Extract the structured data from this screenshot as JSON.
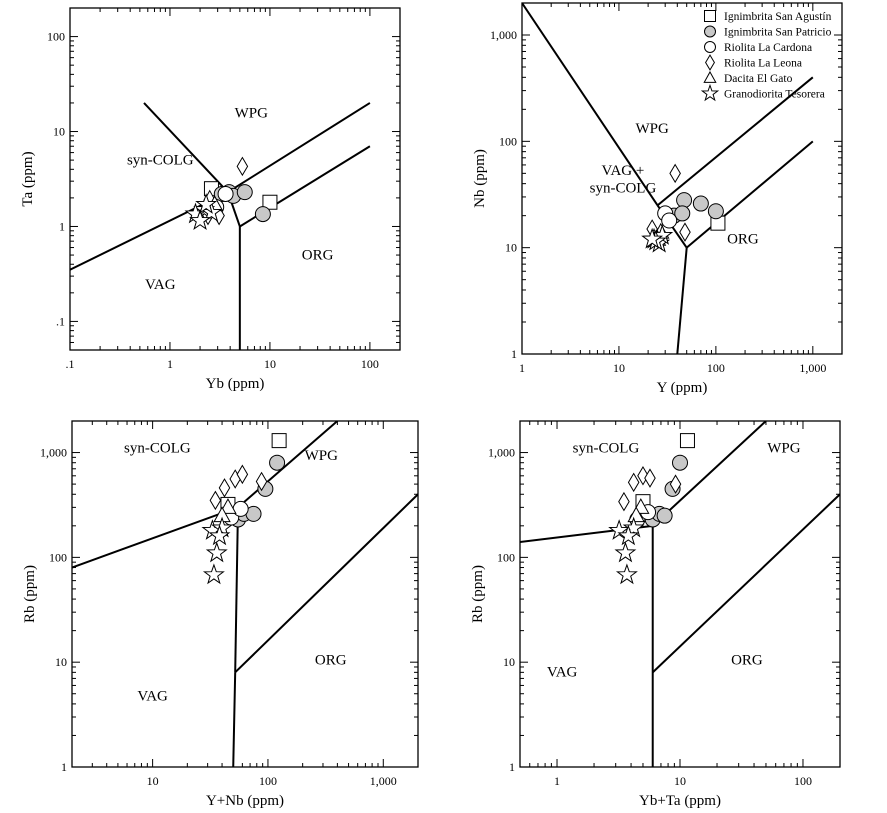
{
  "colors": {
    "ink": "#000000",
    "fill_open": "#ffffff",
    "fill_gray": "#c8c8c8"
  },
  "legend": [
    {
      "label": "Ignimbrita San Agustín",
      "symbol": "square",
      "fill": "#ffffff"
    },
    {
      "label": "Ignimbrita San Patricio",
      "symbol": "circle",
      "fill": "#c8c8c8"
    },
    {
      "label": "Riolita La Cardona",
      "symbol": "circle",
      "fill": "#ffffff"
    },
    {
      "label": "Riolita La Leona",
      "symbol": "diamond",
      "fill": "#ffffff"
    },
    {
      "label": "Dacita El Gato",
      "symbol": "triangle",
      "fill": "#ffffff"
    },
    {
      "label": "Granodiorita Tesorera",
      "symbol": "star",
      "fill": "#ffffff"
    }
  ],
  "chart_data": [
    {
      "id": "ta-yb",
      "type": "scatter",
      "xlabel": "Yb (ppm)",
      "ylabel": "Ta (ppm)",
      "xscale": "log",
      "yscale": "log",
      "xlim": [
        0.1,
        200
      ],
      "ylim": [
        0.05,
        200
      ],
      "xticks": [
        {
          "v": 0.1,
          "t": ".1"
        },
        {
          "v": 1,
          "t": "1"
        },
        {
          "v": 10,
          "t": "10"
        },
        {
          "v": 100,
          "t": "100"
        }
      ],
      "yticks": [
        {
          "v": 0.1,
          "t": ".1"
        },
        {
          "v": 1,
          "t": "1"
        },
        {
          "v": 10,
          "t": "10"
        },
        {
          "v": 100,
          "t": "100"
        }
      ],
      "fields": [
        {
          "t": "WPG",
          "x": 6.5,
          "y": 14
        },
        {
          "t": "syn-COLG",
          "x": 0.8,
          "y": 4.5
        },
        {
          "t": "ORG",
          "x": 30,
          "y": 0.45
        },
        {
          "t": "VAG",
          "x": 0.8,
          "y": 0.22
        }
      ],
      "boundaries": [
        [
          [
            0.1,
            0.35
          ],
          [
            3.8,
            2.3
          ]
        ],
        [
          [
            3.8,
            2.3
          ],
          [
            100,
            20
          ]
        ],
        [
          [
            3.8,
            2.3
          ],
          [
            5,
            1
          ]
        ],
        [
          [
            5,
            1
          ],
          [
            100,
            7
          ]
        ],
        [
          [
            5,
            1
          ],
          [
            5,
            0.05
          ]
        ],
        [
          [
            0.55,
            20
          ],
          [
            3.8,
            2.3
          ]
        ]
      ],
      "series": [
        {
          "name": "Ignimbrita San Agustín",
          "points": [
            [
              2.6,
              2.5
            ],
            [
              10,
              1.8
            ]
          ]
        },
        {
          "name": "Ignimbrita San Patricio",
          "points": [
            [
              3.3,
              2.2
            ],
            [
              3.9,
              2.3
            ],
            [
              4.3,
              2.1
            ],
            [
              5.6,
              2.3
            ],
            [
              8.5,
              1.35
            ]
          ]
        },
        {
          "name": "Riolita La Cardona",
          "points": [
            [
              3.6,
              2.2
            ],
            [
              2.9,
              1.6
            ]
          ]
        },
        {
          "name": "Riolita La Leona",
          "points": [
            [
              5.3,
              4.3
            ],
            [
              2.8,
              1.6
            ],
            [
              3.1,
              1.3
            ],
            [
              2.4,
              1.3
            ]
          ]
        },
        {
          "name": "Dacita El Gato",
          "points": [
            [
              2.5,
              1.95
            ],
            [
              2.8,
              1.7
            ]
          ]
        },
        {
          "name": "Granodiorita Tesorera",
          "points": [
            [
              2.2,
              1.5
            ],
            [
              1.8,
              1.35
            ],
            [
              2.6,
              1.4
            ],
            [
              2.0,
              1.15
            ],
            [
              2.3,
              1.7
            ]
          ]
        }
      ]
    },
    {
      "id": "nb-y",
      "type": "scatter",
      "xlabel": "Y (ppm)",
      "ylabel": "Nb (ppm)",
      "xscale": "log",
      "yscale": "log",
      "xlim": [
        1,
        2000
      ],
      "ylim": [
        1,
        2000
      ],
      "xticks": [
        {
          "v": 1,
          "t": "1"
        },
        {
          "v": 10,
          "t": "10"
        },
        {
          "v": 100,
          "t": "100"
        },
        {
          "v": 1000,
          "t": "1,000"
        }
      ],
      "yticks": [
        {
          "v": 1,
          "t": "1"
        },
        {
          "v": 10,
          "t": "10"
        },
        {
          "v": 100,
          "t": "100"
        },
        {
          "v": 1000,
          "t": "1,000"
        }
      ],
      "fields": [
        {
          "t": "WPG",
          "x": 22,
          "y": 120
        },
        {
          "t": "VAG +",
          "x": 11,
          "y": 48
        },
        {
          "t": "syn-COLG",
          "x": 11,
          "y": 33
        },
        {
          "t": "ORG",
          "x": 190,
          "y": 11
        }
      ],
      "boundaries": [
        [
          [
            1,
            2000
          ],
          [
            25,
            25
          ]
        ],
        [
          [
            25,
            25
          ],
          [
            1000,
            400
          ]
        ],
        [
          [
            25,
            25
          ],
          [
            50,
            10
          ]
        ],
        [
          [
            50,
            10
          ],
          [
            1000,
            100
          ]
        ],
        [
          [
            50,
            10
          ],
          [
            40,
            1
          ]
        ]
      ],
      "series": [
        {
          "name": "Ignimbrita San Agustín",
          "points": [
            [
              105,
              17
            ]
          ]
        },
        {
          "name": "Ignimbrita San Patricio",
          "points": [
            [
              37,
              20
            ],
            [
              47,
              28
            ],
            [
              45,
              21
            ],
            [
              70,
              26
            ],
            [
              100,
              22
            ]
          ]
        },
        {
          "name": "Riolita La Cardona",
          "points": [
            [
              30,
              21
            ],
            [
              33,
              18
            ]
          ]
        },
        {
          "name": "Riolita La Leona",
          "points": [
            [
              38,
              50
            ],
            [
              22,
              15
            ],
            [
              48,
              14
            ]
          ]
        },
        {
          "name": "Dacita El Gato",
          "points": [
            [
              27,
              14
            ],
            [
              25,
              12
            ]
          ]
        },
        {
          "name": "Granodiorita Tesorera",
          "points": [
            [
              23,
              12
            ],
            [
              26,
              11
            ],
            [
              28,
              13
            ],
            [
              24,
              11.5
            ],
            [
              22,
              12
            ]
          ]
        }
      ]
    },
    {
      "id": "rb-ynb",
      "type": "scatter",
      "xlabel": "Y+Nb (ppm)",
      "ylabel": "Rb (ppm)",
      "xscale": "log",
      "yscale": "log",
      "xlim": [
        2,
        2000
      ],
      "ylim": [
        1,
        2000
      ],
      "xticks": [
        {
          "v": 10,
          "t": "10"
        },
        {
          "v": 100,
          "t": "100"
        },
        {
          "v": 1000,
          "t": "1,000"
        }
      ],
      "yticks": [
        {
          "v": 1,
          "t": "1"
        },
        {
          "v": 10,
          "t": "10"
        },
        {
          "v": 100,
          "t": "100"
        },
        {
          "v": 1000,
          "t": "1,000"
        }
      ],
      "fields": [
        {
          "t": "syn-COLG",
          "x": 11,
          "y": 1000
        },
        {
          "t": "WPG",
          "x": 290,
          "y": 850
        },
        {
          "t": "ORG",
          "x": 350,
          "y": 9.5
        },
        {
          "t": "VAG",
          "x": 10,
          "y": 4.3
        }
      ],
      "boundaries": [
        [
          [
            2,
            80
          ],
          [
            55,
            300
          ]
        ],
        [
          [
            55,
            300
          ],
          [
            400,
            2000
          ]
        ],
        [
          [
            55,
            300
          ],
          [
            52,
            8
          ]
        ],
        [
          [
            52,
            8
          ],
          [
            2000,
            400
          ]
        ],
        [
          [
            52,
            8
          ],
          [
            50,
            1
          ]
        ]
      ],
      "series": [
        {
          "name": "Ignimbrita San Agustín",
          "points": [
            [
              125,
              1300
            ],
            [
              45,
              320
            ]
          ]
        },
        {
          "name": "Ignimbrita San Patricio",
          "points": [
            [
              120,
              800
            ],
            [
              95,
              450
            ],
            [
              55,
              230
            ],
            [
              62,
              260
            ],
            [
              75,
              260
            ]
          ]
        },
        {
          "name": "Riolita La Cardona",
          "points": [
            [
              48,
              240
            ],
            [
              58,
              290
            ]
          ]
        },
        {
          "name": "Riolita La Leona",
          "points": [
            [
              35,
              350
            ],
            [
              42,
              460
            ],
            [
              52,
              560
            ],
            [
              60,
              620
            ],
            [
              88,
              530
            ]
          ]
        },
        {
          "name": "Dacita El Gato",
          "points": [
            [
              45,
              300
            ],
            [
              40,
              250
            ]
          ]
        },
        {
          "name": "Granodiorita Tesorera",
          "points": [
            [
              33,
              180
            ],
            [
              40,
              190
            ],
            [
              38,
              160
            ],
            [
              36,
              110
            ],
            [
              34,
              68
            ]
          ]
        }
      ]
    },
    {
      "id": "rb-ybta",
      "type": "scatter",
      "xlabel": "Yb+Ta (ppm)",
      "ylabel": "Rb (ppm)",
      "xscale": "log",
      "yscale": "log",
      "xlim": [
        0.5,
        200
      ],
      "ylim": [
        1,
        2000
      ],
      "xticks": [
        {
          "v": 1,
          "t": "1"
        },
        {
          "v": 10,
          "t": "10"
        },
        {
          "v": 100,
          "t": "100"
        }
      ],
      "yticks": [
        {
          "v": 1,
          "t": "1"
        },
        {
          "v": 10,
          "t": "10"
        },
        {
          "v": 100,
          "t": "100"
        },
        {
          "v": 1000,
          "t": "1,000"
        }
      ],
      "fields": [
        {
          "t": "syn-COLG",
          "x": 2.5,
          "y": 1000
        },
        {
          "t": "WPG",
          "x": 70,
          "y": 1000
        },
        {
          "t": "ORG",
          "x": 35,
          "y": 9.5
        },
        {
          "t": "VAG",
          "x": 1.1,
          "y": 7.3
        }
      ],
      "boundaries": [
        [
          [
            0.5,
            140
          ],
          [
            6,
            200
          ]
        ],
        [
          [
            6,
            200
          ],
          [
            50,
            2000
          ]
        ],
        [
          [
            6,
            200
          ],
          [
            6,
            1
          ]
        ],
        [
          [
            6,
            8
          ],
          [
            200,
            400
          ]
        ]
      ],
      "series": [
        {
          "name": "Ignimbrita San Agustín",
          "points": [
            [
              11.5,
              1300
            ],
            [
              5,
              340
            ]
          ]
        },
        {
          "name": "Ignimbrita San Patricio",
          "points": [
            [
              10,
              800
            ],
            [
              8.7,
              450
            ],
            [
              6,
              230
            ],
            [
              6.8,
              260
            ],
            [
              7.5,
              250
            ]
          ]
        },
        {
          "name": "Riolita La Cardona",
          "points": [
            [
              4.5,
              230
            ],
            [
              5.5,
              270
            ]
          ]
        },
        {
          "name": "Riolita La Leona",
          "points": [
            [
              3.5,
              340
            ],
            [
              4.2,
              520
            ],
            [
              5.0,
              600
            ],
            [
              5.7,
              570
            ],
            [
              9.2,
              500
            ]
          ]
        },
        {
          "name": "Dacita El Gato",
          "points": [
            [
              4.8,
              300
            ],
            [
              4.4,
              250
            ]
          ]
        },
        {
          "name": "Granodiorita Tesorera",
          "points": [
            [
              3.2,
              180
            ],
            [
              4.2,
              190
            ],
            [
              3.8,
              160
            ],
            [
              3.6,
              110
            ],
            [
              3.7,
              68
            ]
          ]
        }
      ]
    }
  ]
}
